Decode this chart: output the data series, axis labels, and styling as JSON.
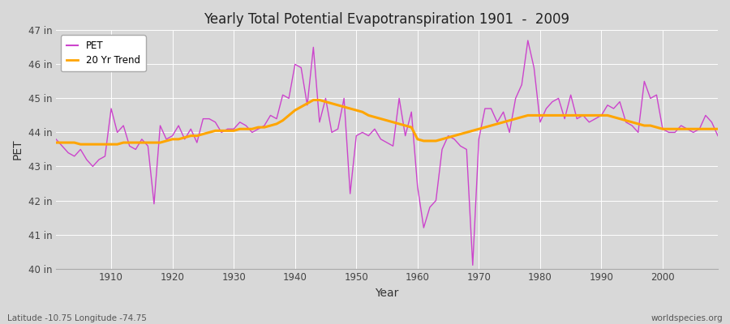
{
  "title": "Yearly Total Potential Evapotranspiration 1901  -  2009",
  "xlabel": "Year",
  "ylabel": "PET",
  "lat_lon_label": "Latitude -10.75 Longitude -74.75",
  "source_label": "worldspecies.org",
  "pet_color": "#CC44CC",
  "trend_color": "#FFA500",
  "bg_color": "#D8D8D8",
  "plot_bg_color": "#D8D8D8",
  "ylim": [
    40,
    47
  ],
  "ytick_labels": [
    "40 in",
    "41 in",
    "42 in",
    "43 in",
    "44 in",
    "45 in",
    "46 in",
    "47 in"
  ],
  "ytick_values": [
    40,
    41,
    42,
    43,
    44,
    45,
    46,
    47
  ],
  "years": [
    1901,
    1902,
    1903,
    1904,
    1905,
    1906,
    1907,
    1908,
    1909,
    1910,
    1911,
    1912,
    1913,
    1914,
    1915,
    1916,
    1917,
    1918,
    1919,
    1920,
    1921,
    1922,
    1923,
    1924,
    1925,
    1926,
    1927,
    1928,
    1929,
    1930,
    1931,
    1932,
    1933,
    1934,
    1935,
    1936,
    1937,
    1938,
    1939,
    1940,
    1941,
    1942,
    1943,
    1944,
    1945,
    1946,
    1947,
    1948,
    1949,
    1950,
    1951,
    1952,
    1953,
    1954,
    1955,
    1956,
    1957,
    1958,
    1959,
    1960,
    1961,
    1962,
    1963,
    1964,
    1965,
    1966,
    1967,
    1968,
    1969,
    1970,
    1971,
    1972,
    1973,
    1974,
    1975,
    1976,
    1977,
    1978,
    1979,
    1980,
    1981,
    1982,
    1983,
    1984,
    1985,
    1986,
    1987,
    1988,
    1989,
    1990,
    1991,
    1992,
    1993,
    1994,
    1995,
    1996,
    1997,
    1998,
    1999,
    2000,
    2001,
    2002,
    2003,
    2004,
    2005,
    2006,
    2007,
    2008,
    2009
  ],
  "pet_values": [
    43.8,
    43.6,
    43.4,
    43.3,
    43.5,
    43.2,
    43.0,
    43.2,
    43.3,
    44.7,
    44.0,
    44.2,
    43.6,
    43.5,
    43.8,
    43.6,
    41.9,
    44.2,
    43.8,
    43.9,
    44.2,
    43.8,
    44.1,
    43.7,
    44.4,
    44.4,
    44.3,
    44.0,
    44.1,
    44.1,
    44.3,
    44.2,
    44.0,
    44.1,
    44.2,
    44.5,
    44.4,
    45.1,
    45.0,
    46.0,
    45.9,
    44.8,
    46.5,
    44.3,
    45.0,
    44.0,
    44.1,
    45.0,
    42.2,
    43.9,
    44.0,
    43.9,
    44.1,
    43.8,
    43.7,
    43.6,
    45.0,
    43.9,
    44.6,
    42.4,
    41.2,
    41.8,
    42.0,
    43.5,
    43.9,
    43.8,
    43.6,
    43.5,
    40.1,
    43.8,
    44.7,
    44.7,
    44.3,
    44.6,
    44.0,
    45.0,
    45.4,
    46.7,
    45.9,
    44.3,
    44.7,
    44.9,
    45.0,
    44.4,
    45.1,
    44.4,
    44.5,
    44.3,
    44.4,
    44.5,
    44.8,
    44.7,
    44.9,
    44.3,
    44.2,
    44.0,
    45.5,
    45.0,
    45.1,
    44.1,
    44.0,
    44.0,
    44.2,
    44.1,
    44.0,
    44.1,
    44.5,
    44.3,
    43.9
  ],
  "trend_values": [
    43.7,
    43.7,
    43.7,
    43.7,
    43.65,
    43.65,
    43.65,
    43.65,
    43.65,
    43.65,
    43.65,
    43.7,
    43.7,
    43.7,
    43.7,
    43.7,
    43.7,
    43.7,
    43.75,
    43.8,
    43.8,
    43.85,
    43.9,
    43.9,
    43.95,
    44.0,
    44.05,
    44.05,
    44.05,
    44.05,
    44.1,
    44.1,
    44.1,
    44.15,
    44.15,
    44.2,
    44.25,
    44.35,
    44.5,
    44.65,
    44.75,
    44.85,
    44.95,
    44.95,
    44.9,
    44.85,
    44.8,
    44.75,
    44.7,
    44.65,
    44.6,
    44.5,
    44.45,
    44.4,
    44.35,
    44.3,
    44.25,
    44.2,
    44.15,
    43.8,
    43.75,
    43.75,
    43.75,
    43.8,
    43.85,
    43.9,
    43.95,
    44.0,
    44.05,
    44.1,
    44.15,
    44.2,
    44.25,
    44.3,
    44.35,
    44.4,
    44.45,
    44.5,
    44.5,
    44.5,
    44.5,
    44.5,
    44.5,
    44.5,
    44.5,
    44.5,
    44.5,
    44.5,
    44.5,
    44.5,
    44.5,
    44.45,
    44.4,
    44.35,
    44.3,
    44.25,
    44.2,
    44.2,
    44.15,
    44.1,
    44.1,
    44.1,
    44.1,
    44.1,
    44.1,
    44.1,
    44.1,
    44.1,
    44.1
  ]
}
